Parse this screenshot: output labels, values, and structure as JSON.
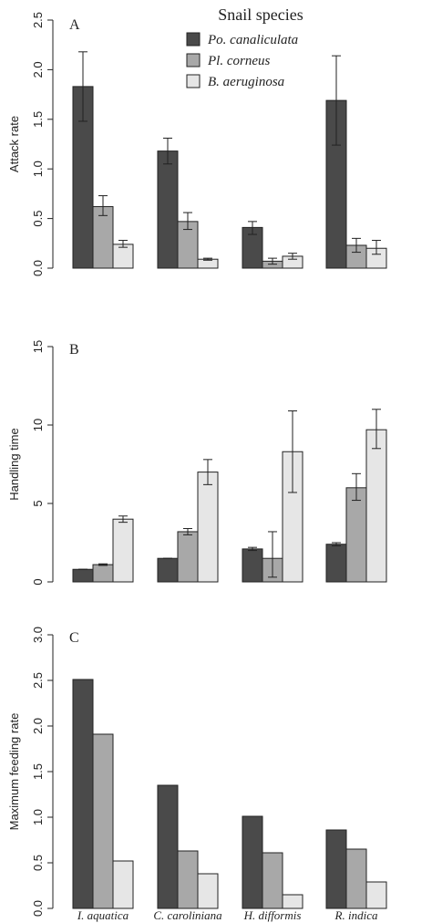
{
  "legend": {
    "title": "Snail species",
    "placement": "top-right"
  },
  "colors": {
    "series_fill": [
      "#4a4a4a",
      "#a8a8a8",
      "#e6e6e6"
    ],
    "stroke": "#222222"
  },
  "chart_data": [
    {
      "type": "bar",
      "panel_label": "A",
      "ylabel": "Attack rate",
      "categories": [
        "I. aquatica",
        "C. caroliniana",
        "H. difformis",
        "R. indica"
      ],
      "series": [
        {
          "name": "Po. canaliculata",
          "values": [
            1.83,
            1.18,
            0.41,
            1.69
          ],
          "err_low": [
            1.48,
            1.05,
            0.34,
            1.24
          ],
          "err_high": [
            2.18,
            1.31,
            0.47,
            2.14
          ]
        },
        {
          "name": "Pl. corneus",
          "values": [
            0.62,
            0.47,
            0.07,
            0.23
          ],
          "err_low": [
            0.53,
            0.39,
            0.04,
            0.16
          ],
          "err_high": [
            0.73,
            0.56,
            0.1,
            0.3
          ]
        },
        {
          "name": "B. aeruginosa",
          "values": [
            0.24,
            0.09,
            0.12,
            0.2
          ],
          "err_low": [
            0.21,
            0.08,
            0.09,
            0.14
          ],
          "err_high": [
            0.28,
            0.1,
            0.15,
            0.28
          ]
        }
      ],
      "ylim": [
        0,
        2.5
      ],
      "yticks": [
        "0.0",
        "0.5",
        "1.0",
        "1.5",
        "2.0",
        "2.5"
      ],
      "ytick_values": [
        0,
        0.5,
        1.0,
        1.5,
        2.0,
        2.5
      ],
      "grid": false
    },
    {
      "type": "bar",
      "panel_label": "B",
      "ylabel": "Handling time",
      "categories": [
        "I. aquatica",
        "C. caroliniana",
        "H. difformis",
        "R. indica"
      ],
      "series": [
        {
          "name": "Po. canaliculata",
          "values": [
            0.8,
            1.5,
            2.1,
            2.4
          ],
          "err_low": [
            0.8,
            1.5,
            2.0,
            2.3
          ],
          "err_high": [
            0.8,
            1.5,
            2.2,
            2.5
          ]
        },
        {
          "name": "Pl. corneus",
          "values": [
            1.1,
            3.2,
            1.5,
            6.0
          ],
          "err_low": [
            1.05,
            3.0,
            0.3,
            5.2
          ],
          "err_high": [
            1.15,
            3.4,
            3.2,
            6.9
          ]
        },
        {
          "name": "B. aeruginosa",
          "values": [
            4.0,
            7.0,
            8.3,
            9.7
          ],
          "err_low": [
            3.8,
            6.2,
            5.7,
            8.5
          ],
          "err_high": [
            4.2,
            7.8,
            10.9,
            11.0
          ]
        }
      ],
      "ylim": [
        0,
        15
      ],
      "yticks": [
        "0",
        "5",
        "10",
        "15"
      ],
      "ytick_values": [
        0,
        5,
        10,
        15
      ],
      "grid": false
    },
    {
      "type": "bar",
      "panel_label": "C",
      "ylabel": "Maximum feeding rate",
      "categories": [
        "I. aquatica",
        "C. caroliniana",
        "H. difformis",
        "R. indica"
      ],
      "series": [
        {
          "name": "Po. canaliculata",
          "values": [
            2.51,
            1.35,
            1.01,
            0.86
          ]
        },
        {
          "name": "Pl. corneus",
          "values": [
            1.91,
            0.63,
            0.61,
            0.65
          ]
        },
        {
          "name": "B. aeruginosa",
          "values": [
            0.52,
            0.38,
            0.15,
            0.29
          ]
        }
      ],
      "ylim": [
        0,
        3.0
      ],
      "yticks": [
        "0.0",
        "0.5",
        "1.0",
        "1.5",
        "2.0",
        "2.5",
        "3.0"
      ],
      "ytick_values": [
        0,
        0.5,
        1.0,
        1.5,
        2.0,
        2.5,
        3.0
      ],
      "grid": false
    }
  ]
}
